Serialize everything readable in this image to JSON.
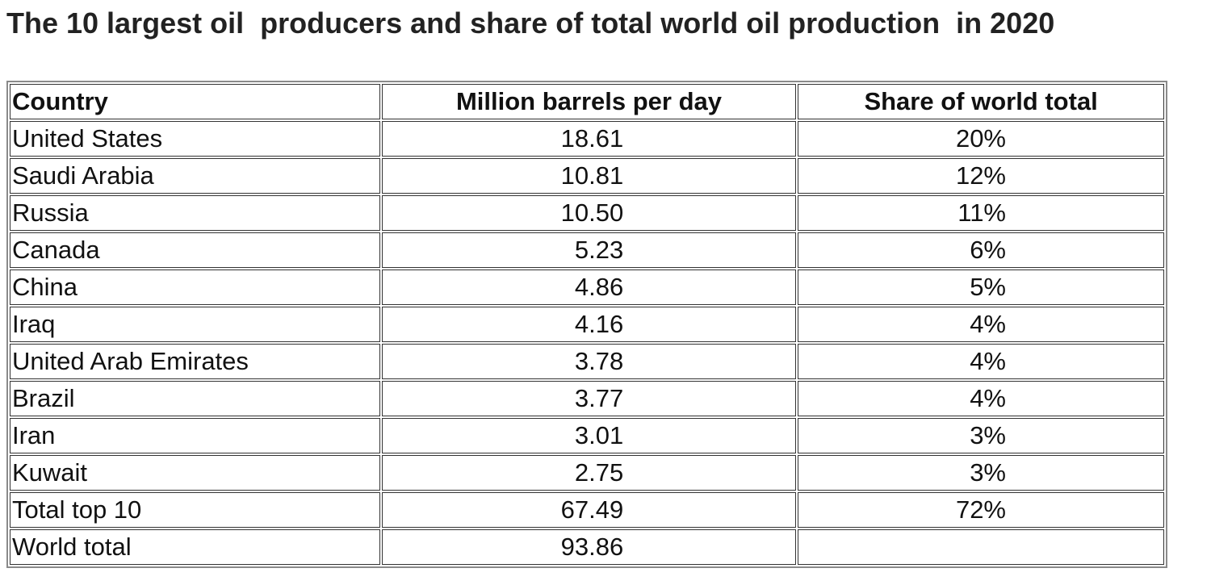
{
  "header": {
    "title": "The 10 largest oil  producers and share of total world oil production  in 2020"
  },
  "table": {
    "columns": [
      "Country",
      "Million barrels per day",
      "Share of world total"
    ],
    "rows": [
      [
        "United States",
        "18.61",
        "20%"
      ],
      [
        "Saudi Arabia",
        "10.81",
        "12%"
      ],
      [
        "Russia",
        "10.50",
        "11%"
      ],
      [
        "Canada",
        "5.23",
        "6%"
      ],
      [
        "China",
        "4.86",
        "5%"
      ],
      [
        "Iraq",
        "4.16",
        "4%"
      ],
      [
        "United Arab Emirates",
        "3.78",
        "4%"
      ],
      [
        "Brazil",
        "3.77",
        "4%"
      ],
      [
        "Iran",
        "3.01",
        "3%"
      ],
      [
        "Kuwait",
        "2.75",
        "3%"
      ],
      [
        "Total top 10",
        "67.49",
        "72%"
      ],
      [
        "World total",
        "93.86"
      ]
    ]
  }
}
